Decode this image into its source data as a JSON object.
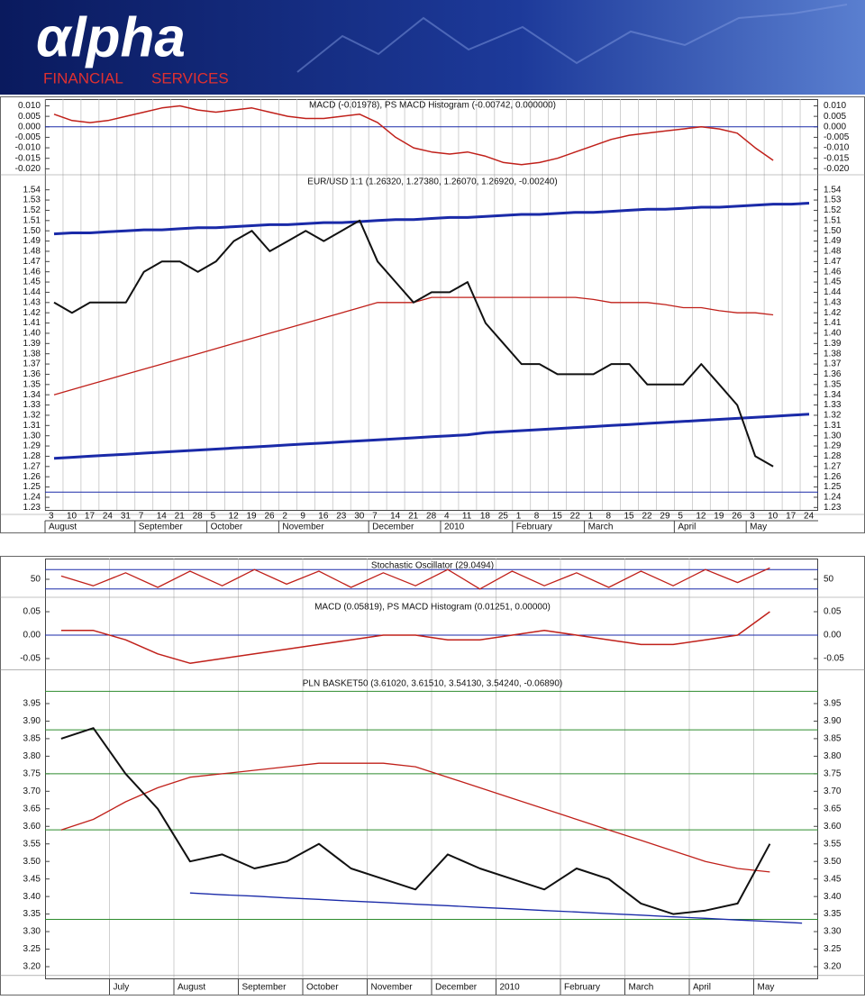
{
  "header": {
    "logo": "αlpha",
    "tagline": [
      "FINANCIAL",
      "SERVICES"
    ]
  },
  "chart_data": [
    {
      "type": "line",
      "title": "MACD (-0.01978), PS MACD Histogram (-0.00742, 0.000000)",
      "ylim": [
        -0.022,
        0.0115
      ],
      "yticks": [
        {
          "value": 0.01,
          "label": "0.010"
        },
        {
          "value": 0.005,
          "label": "0.005"
        },
        {
          "value": 0,
          "label": "0.000"
        },
        {
          "value": -0.005,
          "label": "-0.005"
        },
        {
          "value": -0.01,
          "label": "-0.010"
        },
        {
          "value": -0.015,
          "label": "-0.015"
        },
        {
          "value": -0.02,
          "label": "-0.020"
        }
      ],
      "levels": [
        0
      ],
      "level_color": "#1a2aa8",
      "series": [
        {
          "color": "#c0201a",
          "width": 1.5,
          "values": [
            0.006,
            0.003,
            0.002,
            0.003,
            0.005,
            0.007,
            0.009,
            0.01,
            0.008,
            0.007,
            0.008,
            0.009,
            0.007,
            0.005,
            0.004,
            0.004,
            0.005,
            0.006,
            0.002,
            -0.005,
            -0.01,
            -0.012,
            -0.013,
            -0.012,
            -0.014,
            -0.017,
            -0.018,
            -0.017,
            -0.015,
            -0.012,
            -0.009,
            -0.006,
            -0.004,
            -0.003,
            -0.002,
            -0.001,
            0.0,
            -0.001,
            -0.003,
            -0.01,
            -0.016,
            null,
            null
          ]
        }
      ]
    },
    {
      "type": "line",
      "title": "EUR/USD 1:1 (1.26320, 1.27380, 1.26070, 1.26920, -0.00240)",
      "categories": [
        3,
        10,
        17,
        24,
        31,
        7,
        14,
        21,
        28,
        5,
        12,
        19,
        26,
        2,
        9,
        16,
        23,
        30,
        7,
        14,
        21,
        28,
        4,
        11,
        18,
        25,
        1,
        8,
        15,
        22,
        1,
        8,
        15,
        22,
        29,
        5,
        12,
        19,
        26,
        3,
        10,
        17,
        24
      ],
      "months": [
        "August",
        "September",
        "October",
        "November",
        "December",
        "2010",
        "February",
        "March",
        "April",
        "May"
      ],
      "ylim": [
        1.225,
        1.545
      ],
      "yticks": [
        1.23,
        1.24,
        1.25,
        1.26,
        1.27,
        1.28,
        1.29,
        {
          "value": 1.3,
          "label": "1.30"
        },
        1.31,
        1.32,
        1.33,
        1.34,
        1.35,
        1.36,
        1.37,
        1.38,
        1.39,
        {
          "value": 1.4,
          "label": "1.40"
        },
        1.41,
        1.42,
        1.43,
        1.44,
        1.45,
        1.46,
        1.47,
        1.48,
        1.49,
        {
          "value": 1.5,
          "label": "1.50"
        },
        1.51,
        1.52,
        1.53,
        1.54
      ],
      "levels": [
        1.245
      ],
      "level_color": "#1a2aa8",
      "series": [
        {
          "color": "#1a2aa8",
          "width": 3,
          "values": [
            1.497,
            1.498,
            1.498,
            1.499,
            1.5,
            1.501,
            1.501,
            1.502,
            1.503,
            1.503,
            1.504,
            1.505,
            1.506,
            1.506,
            1.507,
            1.508,
            1.508,
            1.509,
            1.51,
            1.511,
            1.511,
            1.512,
            1.513,
            1.513,
            1.514,
            1.515,
            1.516,
            1.516,
            1.517,
            1.518,
            1.518,
            1.519,
            1.52,
            1.521,
            1.521,
            1.522,
            1.523,
            1.523,
            1.524,
            1.525,
            1.526,
            1.526,
            1.527
          ]
        },
        {
          "color": "#1a2aa8",
          "width": 3,
          "values": [
            1.278,
            1.279,
            1.28,
            1.281,
            1.282,
            1.283,
            1.284,
            1.285,
            1.286,
            1.287,
            1.288,
            1.289,
            1.29,
            1.291,
            1.292,
            1.293,
            1.294,
            1.295,
            1.296,
            1.297,
            1.298,
            1.299,
            1.3,
            1.301,
            1.303,
            1.304,
            1.305,
            1.306,
            1.307,
            1.308,
            1.309,
            1.31,
            1.311,
            1.312,
            1.313,
            1.314,
            1.315,
            1.316,
            1.317,
            1.318,
            1.319,
            1.32,
            1.321
          ]
        },
        {
          "color": "#c0201a",
          "width": 1.3,
          "values": [
            1.34,
            1.345,
            1.35,
            1.355,
            1.36,
            1.365,
            1.37,
            1.375,
            1.38,
            1.385,
            1.39,
            1.395,
            1.4,
            1.405,
            1.41,
            1.415,
            1.42,
            1.425,
            1.43,
            1.43,
            1.43,
            1.435,
            1.435,
            1.435,
            1.435,
            1.435,
            1.435,
            1.435,
            1.435,
            1.435,
            1.433,
            1.43,
            1.43,
            1.43,
            1.428,
            1.425,
            1.425,
            1.422,
            1.42,
            1.42,
            1.418,
            null,
            null
          ]
        },
        {
          "color": "#111111",
          "width": 2,
          "values": [
            1.43,
            1.42,
            1.43,
            1.43,
            1.43,
            1.46,
            1.47,
            1.47,
            1.46,
            1.47,
            1.49,
            1.5,
            1.48,
            1.49,
            1.5,
            1.49,
            1.5,
            1.51,
            1.47,
            1.45,
            1.43,
            1.44,
            1.44,
            1.45,
            1.41,
            1.39,
            1.37,
            1.37,
            1.36,
            1.36,
            1.36,
            1.37,
            1.37,
            1.35,
            1.35,
            1.35,
            1.37,
            1.35,
            1.33,
            1.28,
            1.27,
            null,
            null
          ]
        }
      ]
    },
    {
      "type": "line",
      "title": "Stochastic Oscillator (29.0494)",
      "ylim": [
        0,
        100
      ],
      "yticks": [
        50
      ],
      "levels": [
        80,
        20
      ],
      "level_color": "#1a2aa8",
      "series": [
        {
          "color": "#c0201a",
          "width": 1.3,
          "values": [
            60,
            30,
            70,
            25,
            75,
            30,
            80,
            35,
            75,
            25,
            70,
            30,
            80,
            20,
            75,
            30,
            70,
            25,
            75,
            30,
            80,
            40,
            85,
            null
          ]
        }
      ]
    },
    {
      "type": "line",
      "title": "MACD (0.05819), PS MACD Histogram (0.01251, 0.00000)",
      "ylim": [
        -0.07,
        0.07
      ],
      "yticks": [
        {
          "value": 0.05,
          "label": "0.05"
        },
        {
          "value": 0,
          "label": "0.00"
        },
        {
          "value": -0.05,
          "label": "-0.05"
        }
      ],
      "levels": [
        0
      ],
      "level_color": "#1a2aa8",
      "series": [
        {
          "color": "#c0201a",
          "width": 1.5,
          "values": [
            0.01,
            0.01,
            -0.01,
            -0.04,
            -0.06,
            -0.05,
            -0.04,
            -0.03,
            -0.02,
            -0.01,
            0.0,
            0.0,
            -0.01,
            -0.01,
            0.0,
            0.01,
            0.0,
            -0.01,
            -0.02,
            -0.02,
            -0.01,
            0.0,
            0.05,
            null
          ]
        }
      ]
    },
    {
      "type": "line",
      "title": "PLN BASKET50 (3.61020, 3.61510, 3.54130, 3.54240, -0.06890)",
      "categories": [
        null,
        null,
        "July",
        null,
        "August",
        null,
        "September",
        null,
        "October",
        null,
        "November",
        null,
        "December",
        null,
        "2010",
        null,
        "February",
        null,
        "March",
        null,
        "April",
        null,
        "May",
        null
      ],
      "ylim": [
        3.18,
        3.99
      ],
      "yticks": [
        {
          "value": 3.2,
          "label": "3.20"
        },
        3.25,
        {
          "value": 3.3,
          "label": "3.30"
        },
        3.35,
        {
          "value": 3.4,
          "label": "3.40"
        },
        3.45,
        {
          "value": 3.5,
          "label": "3.50"
        },
        3.55,
        {
          "value": 3.6,
          "label": "3.60"
        },
        3.65,
        {
          "value": 3.7,
          "label": "3.70"
        },
        3.75,
        {
          "value": 3.8,
          "label": "3.80"
        },
        3.85,
        {
          "value": 3.9,
          "label": "3.90"
        },
        3.95
      ],
      "levels": [
        3.335,
        3.59,
        3.75,
        3.875,
        3.985
      ],
      "level_color": "#2e8b2e",
      "series": [
        {
          "color": "#1a2aa8",
          "width": 1.3,
          "values": [
            null,
            null,
            null,
            null,
            3.41,
            3.405,
            3.401,
            3.396,
            3.392,
            3.387,
            3.383,
            3.378,
            3.374,
            3.369,
            3.365,
            3.36,
            3.356,
            3.351,
            3.347,
            3.342,
            3.338,
            3.333,
            3.329,
            3.324
          ]
        },
        {
          "color": "#c0201a",
          "width": 1.3,
          "values": [
            3.59,
            3.62,
            3.67,
            3.71,
            3.74,
            3.75,
            3.76,
            3.77,
            3.78,
            3.78,
            3.78,
            3.77,
            3.74,
            3.71,
            3.68,
            3.65,
            3.62,
            3.59,
            3.56,
            3.53,
            3.5,
            3.48,
            3.47,
            null
          ]
        },
        {
          "color": "#111111",
          "width": 2,
          "values": [
            3.85,
            3.88,
            3.75,
            3.65,
            3.5,
            3.52,
            3.48,
            3.5,
            3.55,
            3.48,
            3.45,
            3.42,
            3.52,
            3.48,
            3.45,
            3.42,
            3.48,
            3.45,
            3.38,
            3.35,
            3.36,
            3.38,
            3.55,
            null
          ]
        }
      ]
    }
  ]
}
